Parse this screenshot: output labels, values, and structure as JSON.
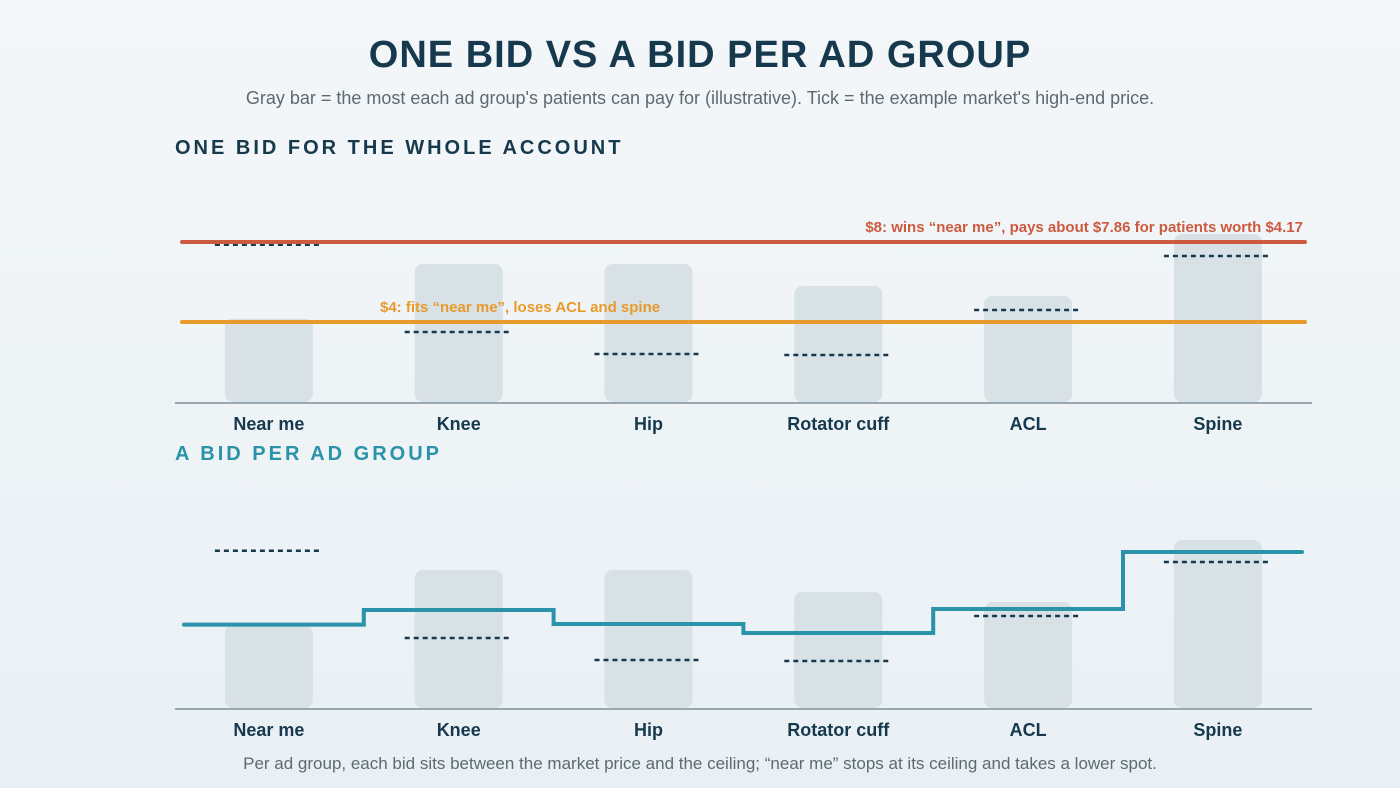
{
  "title": "ONE BID VS A BID PER AD GROUP",
  "subtitle": "Gray bar = the most each ad group's patients can pay for (illustrative). Tick = the example market's high-end price.",
  "footer": "Per ad group, each bid sits between the market price and the ceiling; “near me” stops at its ceiling and takes a lower spot.",
  "colors": {
    "bar": "#d8e2e6",
    "tick": "#16394d",
    "axis": "#98a8b0",
    "single_bid_high": "#cc5a3e",
    "single_bid_low": "#e89a2c",
    "per_group_bid": "#2a93aa"
  },
  "chart_data": [
    {
      "type": "bar",
      "section_title": "ONE BID FOR THE WHOLE ACCOUNT",
      "categories": [
        "Near me",
        "Knee",
        "Hip",
        "Rotator cuff",
        "ACL",
        "Spine"
      ],
      "ceiling": [
        4.17,
        6.9,
        6.9,
        5.8,
        5.3,
        8.4
      ],
      "market_high": [
        7.86,
        3.5,
        2.4,
        2.35,
        4.6,
        7.3
      ],
      "ylim": [
        0,
        9
      ],
      "bid_lines": [
        {
          "value": 8,
          "label": "$8: wins “near me”, pays about $7.86 for patients worth $4.17",
          "color": "#cc5a3e"
        },
        {
          "value": 4,
          "label": "$4: fits “near me”, loses ACL and spine",
          "color": "#e89a2c"
        }
      ]
    },
    {
      "type": "bar",
      "section_title": "A BID PER AD GROUP",
      "categories": [
        "Near me",
        "Knee",
        "Hip",
        "Rotator cuff",
        "ACL",
        "Spine"
      ],
      "ceiling": [
        4.17,
        6.9,
        6.9,
        5.8,
        5.3,
        8.4
      ],
      "market_high": [
        7.86,
        3.5,
        2.4,
        2.35,
        4.6,
        7.3
      ],
      "bids": [
        4.17,
        4.9,
        4.2,
        3.75,
        4.95,
        7.8
      ],
      "ylim": [
        0,
        9
      ]
    }
  ]
}
